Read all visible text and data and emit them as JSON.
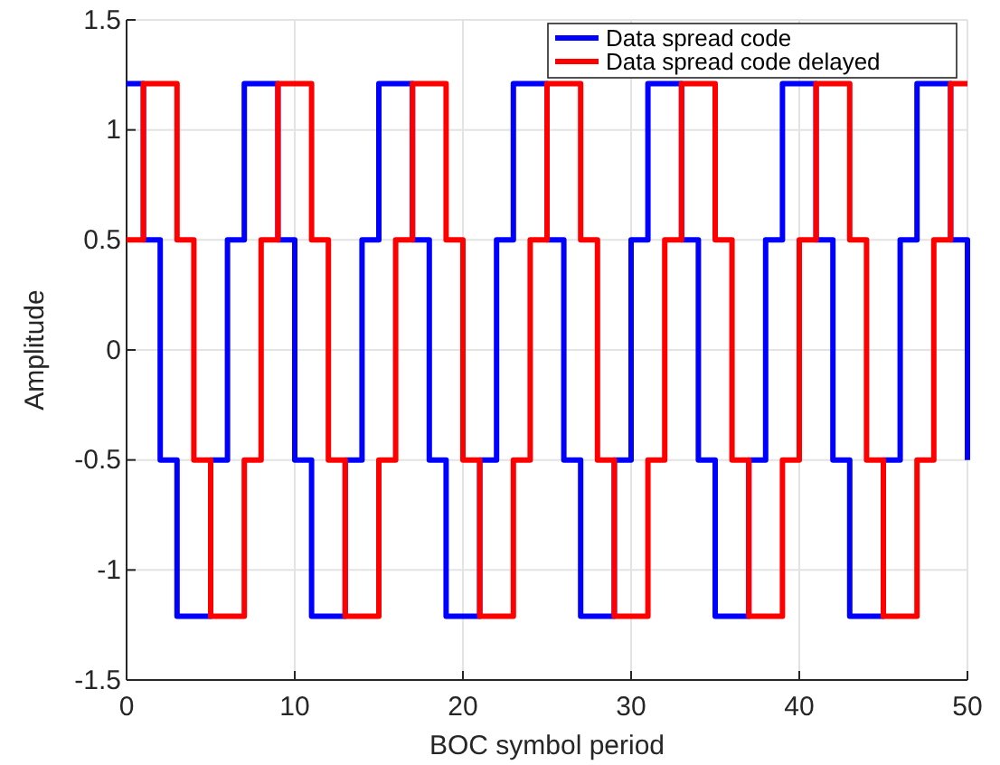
{
  "chart_data": {
    "type": "step",
    "xlabel": "BOC symbol period",
    "ylabel": "Amplitude",
    "x": [
      0,
      1,
      2,
      3,
      4,
      5,
      6,
      7,
      8,
      9,
      10,
      11,
      12,
      13,
      14,
      15,
      16,
      17,
      18,
      19,
      20,
      21,
      22,
      23,
      24,
      25,
      26,
      27,
      28,
      29,
      30,
      31,
      32,
      33,
      34,
      35,
      36,
      37,
      38,
      39,
      40,
      41,
      42,
      43,
      44,
      45,
      46,
      47,
      48,
      49,
      50
    ],
    "series": [
      {
        "name": "Data spread code",
        "color": "#0000ff",
        "values": [
          1.21,
          0.5,
          -0.5,
          -1.21,
          -1.21,
          -0.5,
          0.5,
          1.21,
          1.21,
          0.5,
          -0.5,
          -1.21,
          -1.21,
          -0.5,
          0.5,
          1.21,
          1.21,
          0.5,
          -0.5,
          -1.21,
          -1.21,
          -0.5,
          0.5,
          1.21,
          1.21,
          0.5,
          -0.5,
          -1.21,
          -1.21,
          -0.5,
          0.5,
          1.21,
          1.21,
          0.5,
          -0.5,
          -1.21,
          -1.21,
          -0.5,
          0.5,
          1.21,
          1.21,
          0.5,
          -0.5,
          -1.21,
          -1.21,
          -0.5,
          0.5,
          1.21,
          1.21,
          0.5,
          -0.5
        ]
      },
      {
        "name": "Data spread code delayed",
        "color": "#ff0000",
        "values": [
          0.5,
          1.21,
          1.21,
          0.5,
          -0.5,
          -1.21,
          -1.21,
          -0.5,
          0.5,
          1.21,
          1.21,
          0.5,
          -0.5,
          -1.21,
          -1.21,
          -0.5,
          0.5,
          1.21,
          1.21,
          0.5,
          -0.5,
          -1.21,
          -1.21,
          -0.5,
          0.5,
          1.21,
          1.21,
          0.5,
          -0.5,
          -1.21,
          -1.21,
          -0.5,
          0.5,
          1.21,
          1.21,
          0.5,
          -0.5,
          -1.21,
          -1.21,
          -0.5,
          0.5,
          1.21,
          1.21,
          0.5,
          -0.5,
          -1.21,
          -1.21,
          -0.5,
          0.5,
          1.21,
          1.21
        ]
      }
    ],
    "xlim": [
      0,
      50
    ],
    "xticks": [
      0,
      10,
      20,
      30,
      40,
      50
    ],
    "ylim": [
      -1.5,
      1.5
    ],
    "yticks": [
      -1.5,
      -1,
      -0.5,
      0,
      0.5,
      1,
      1.5
    ],
    "grid": true,
    "legend": "top right"
  }
}
